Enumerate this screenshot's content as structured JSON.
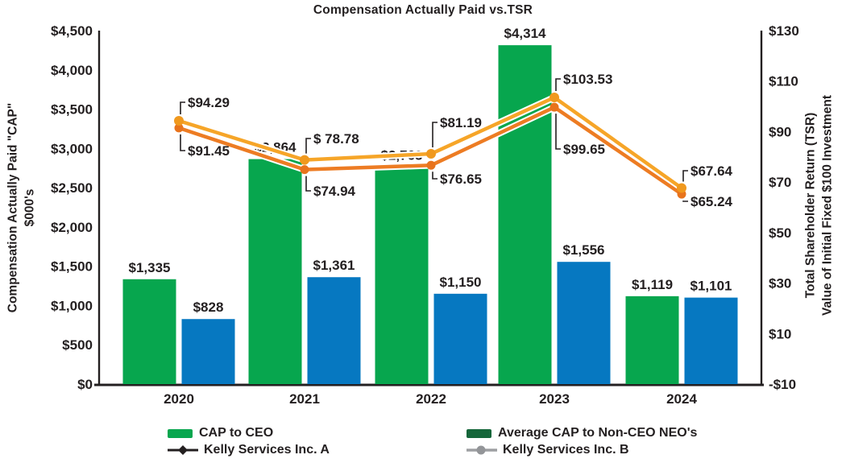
{
  "title": "Compensation Actually Paid vs.TSR",
  "left_axis": {
    "title_line1": "Compensation Actually Paid \"CAP\"",
    "title_line2": "$000's",
    "ticks": [
      {
        "label": "$4,500",
        "value": 4500
      },
      {
        "label": "$4,000",
        "value": 4000
      },
      {
        "label": "$3,500",
        "value": 3500
      },
      {
        "label": "$3,000",
        "value": 3000
      },
      {
        "label": "$2,500",
        "value": 2500
      },
      {
        "label": "$2,000",
        "value": 2000
      },
      {
        "label": "$1,500",
        "value": 1500
      },
      {
        "label": "$1,000",
        "value": 1000
      },
      {
        "label": "$500",
        "value": 500
      },
      {
        "label": "$0",
        "value": 0
      }
    ]
  },
  "right_axis": {
    "title_line1": "Total Shareholder Return (TSR)",
    "title_line2": "Value of Initial Fixed $100 Investment",
    "ticks": [
      {
        "label": "$130",
        "value": 130
      },
      {
        "label": "$110",
        "value": 110
      },
      {
        "label": "$90",
        "value": 90
      },
      {
        "label": "$70",
        "value": 70
      },
      {
        "label": "$50",
        "value": 50
      },
      {
        "label": "$30",
        "value": 30
      },
      {
        "label": "$10",
        "value": 10
      },
      {
        "label": "-$10",
        "value": -10
      }
    ]
  },
  "colors": {
    "text": "#231F20",
    "cap_ceo_bar": "#07A64E",
    "neo_bar": "#0678C1",
    "neo_legend_swatch": "#15663A",
    "line_a": "#ED7C23",
    "line_a_marker": "#E8731C",
    "line_b": "#F6A528",
    "line_b_marker": "#F0991E",
    "legend_line_a": "#231F20",
    "legend_line_b": "#9D9FA2"
  },
  "chart_data": {
    "type": "combo-bar-line",
    "title": "Compensation Actually Paid vs.TSR",
    "categories": [
      "2020",
      "2021",
      "2022",
      "2023",
      "2024"
    ],
    "left_ylabel": "Compensation Actually Paid \"CAP\" $000's",
    "right_ylabel": "Total Shareholder Return (TSR) Value of Initial Fixed $100 Investment",
    "left_ylim": [
      0,
      4500
    ],
    "right_ylim": [
      -10,
      130
    ],
    "grid": false,
    "legend_position": "bottom",
    "bar_series": [
      {
        "name": "CAP to CEO",
        "axis": "left",
        "values": [
          1335,
          2864,
          2763,
          4314,
          1119
        ],
        "labels": [
          "$1,335",
          "$2,864",
          "$2,763",
          "$4,314",
          "$1,119"
        ]
      },
      {
        "name": "Average CAP to Non-CEO NEO's",
        "axis": "left",
        "values": [
          828,
          1361,
          1150,
          1556,
          1101
        ],
        "labels": [
          "$828",
          "$1,361",
          "$1,150",
          "$1,556",
          "$1,101"
        ]
      }
    ],
    "line_series": [
      {
        "name": "Kelly Services Inc. A",
        "axis": "right",
        "label_side": "below",
        "values": [
          91.45,
          74.94,
          76.65,
          99.65,
          65.24
        ],
        "labels": [
          "$91.45",
          "$74.94",
          "$76.65",
          "$99.65",
          "$65.24"
        ]
      },
      {
        "name": "Kelly Services Inc. B",
        "axis": "right",
        "label_side": "above",
        "values": [
          94.29,
          78.78,
          81.19,
          103.53,
          67.64
        ],
        "labels": [
          "$94.29",
          "$ 78.78",
          "$81.19",
          "$103.53",
          "$67.64"
        ]
      }
    ]
  },
  "legend": [
    {
      "label": "CAP to CEO",
      "swatch": "rect-green"
    },
    {
      "label": "Kelly Services Inc. A",
      "swatch": "line-diamond"
    },
    {
      "label": "Average CAP to Non-CEO NEO's",
      "swatch": "rect-darkgreen"
    },
    {
      "label": "Kelly Services Inc. B",
      "swatch": "line-circle"
    }
  ]
}
